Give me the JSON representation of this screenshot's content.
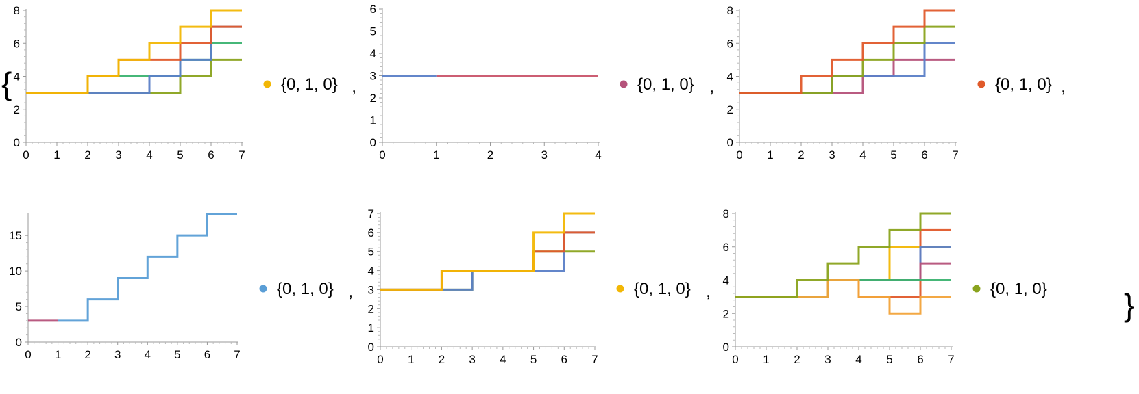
{
  "separator": ",",
  "chart_data": [
    {
      "type": "line",
      "xlim": [
        0,
        7
      ],
      "ylim": [
        0,
        8
      ],
      "xticks": [
        0,
        1,
        2,
        3,
        4,
        5,
        6,
        7
      ],
      "yticks": [
        0,
        2,
        4,
        6,
        8
      ],
      "legend_label": "{0, 1, 0}",
      "legend_color": "#f2b705",
      "series": [
        {
          "color": "#8aa31e",
          "values": [
            [
              0,
              3
            ],
            [
              1,
              3
            ],
            [
              2,
              3
            ],
            [
              3,
              3
            ],
            [
              4,
              3
            ],
            [
              5,
              4
            ],
            [
              6,
              5
            ],
            [
              7,
              5
            ]
          ]
        },
        {
          "color": "#3cb371",
          "values": [
            [
              0,
              3
            ],
            [
              1,
              3
            ],
            [
              2,
              4
            ],
            [
              3,
              4
            ],
            [
              4,
              4
            ],
            [
              5,
              5
            ],
            [
              6,
              6
            ],
            [
              7,
              6
            ]
          ]
        },
        {
          "color": "#5b7fc7",
          "values": [
            [
              0,
              3
            ],
            [
              1,
              3
            ],
            [
              2,
              3
            ],
            [
              3,
              3
            ],
            [
              4,
              4
            ],
            [
              5,
              5
            ],
            [
              6,
              7
            ],
            [
              7,
              7
            ]
          ]
        },
        {
          "color": "#e05a2b",
          "values": [
            [
              0,
              3
            ],
            [
              1,
              3
            ],
            [
              2,
              4
            ],
            [
              3,
              5
            ],
            [
              4,
              5
            ],
            [
              5,
              6
            ],
            [
              6,
              7
            ],
            [
              7,
              7
            ]
          ]
        },
        {
          "color": "#f2b705",
          "values": [
            [
              0,
              3
            ],
            [
              1,
              3
            ],
            [
              2,
              4
            ],
            [
              3,
              5
            ],
            [
              4,
              6
            ],
            [
              5,
              7
            ],
            [
              6,
              8
            ],
            [
              7,
              8
            ]
          ]
        }
      ]
    },
    {
      "type": "line",
      "xlim": [
        0,
        4
      ],
      "ylim": [
        0,
        6
      ],
      "xticks": [
        0,
        1,
        2,
        3,
        4
      ],
      "yticks": [
        0,
        1,
        2,
        3,
        4,
        5,
        6
      ],
      "legend_label": "{0, 1, 0}",
      "legend_color": "#b5527a",
      "series": [
        {
          "color": "#5b7fc7",
          "values": [
            [
              0,
              3
            ],
            [
              1,
              3
            ]
          ]
        },
        {
          "color": "#c9556b",
          "values": [
            [
              1,
              3
            ],
            [
              2,
              3
            ],
            [
              3,
              3
            ],
            [
              4,
              3
            ]
          ]
        }
      ]
    },
    {
      "type": "line",
      "xlim": [
        0,
        7
      ],
      "ylim": [
        0,
        8
      ],
      "xticks": [
        0,
        1,
        2,
        3,
        4,
        5,
        6,
        7
      ],
      "yticks": [
        0,
        2,
        4,
        6,
        8
      ],
      "legend_label": "{0, 1, 0}",
      "legend_color": "#e05a2b",
      "series": [
        {
          "color": "#b5527a",
          "values": [
            [
              0,
              3
            ],
            [
              1,
              3
            ],
            [
              2,
              3
            ],
            [
              3,
              3
            ],
            [
              4,
              4
            ],
            [
              5,
              5
            ],
            [
              6,
              5
            ],
            [
              7,
              5
            ]
          ]
        },
        {
          "color": "#5b7fc7",
          "values": [
            [
              0,
              3
            ],
            [
              1,
              3
            ],
            [
              2,
              3
            ],
            [
              3,
              4
            ],
            [
              4,
              4
            ],
            [
              5,
              4
            ],
            [
              6,
              6
            ],
            [
              7,
              6
            ]
          ]
        },
        {
          "color": "#8aa31e",
          "values": [
            [
              0,
              3
            ],
            [
              1,
              3
            ],
            [
              2,
              3
            ],
            [
              3,
              4
            ],
            [
              4,
              5
            ],
            [
              5,
              6
            ],
            [
              6,
              7
            ],
            [
              7,
              7
            ]
          ]
        },
        {
          "color": "#e05a2b",
          "values": [
            [
              0,
              3
            ],
            [
              1,
              3
            ],
            [
              2,
              4
            ],
            [
              3,
              5
            ],
            [
              4,
              6
            ],
            [
              5,
              7
            ],
            [
              6,
              8
            ],
            [
              7,
              8
            ]
          ]
        }
      ]
    },
    {
      "type": "line",
      "xlim": [
        0,
        7
      ],
      "ylim": [
        0,
        18
      ],
      "xticks": [
        0,
        1,
        2,
        3,
        4,
        5,
        6,
        7
      ],
      "yticks": [
        0,
        5,
        10,
        15
      ],
      "legend_label": "{0, 1, 0}",
      "legend_color": "#5a9ed6",
      "series": [
        {
          "color": "#b5527a",
          "values": [
            [
              0,
              3
            ],
            [
              1,
              3
            ]
          ]
        },
        {
          "color": "#5a9ed6",
          "values": [
            [
              1,
              3
            ],
            [
              2,
              6
            ],
            [
              3,
              9
            ],
            [
              4,
              12
            ],
            [
              5,
              15
            ],
            [
              6,
              18
            ],
            [
              7,
              18
            ]
          ]
        }
      ]
    },
    {
      "type": "line",
      "xlim": [
        0,
        7
      ],
      "ylim": [
        0,
        7
      ],
      "xticks": [
        0,
        1,
        2,
        3,
        4,
        5,
        6,
        7
      ],
      "yticks": [
        0,
        1,
        2,
        3,
        4,
        5,
        6,
        7
      ],
      "legend_label": "{0, 1, 0}",
      "legend_color": "#f2b705",
      "series": [
        {
          "color": "#8aa31e",
          "values": [
            [
              0,
              3
            ],
            [
              1,
              3
            ],
            [
              2,
              3
            ],
            [
              3,
              4
            ],
            [
              4,
              4
            ],
            [
              5,
              5
            ],
            [
              6,
              5
            ],
            [
              7,
              5
            ]
          ]
        },
        {
          "color": "#5b7fc7",
          "values": [
            [
              0,
              3
            ],
            [
              1,
              3
            ],
            [
              2,
              3
            ],
            [
              3,
              4
            ],
            [
              4,
              4
            ],
            [
              5,
              4
            ],
            [
              6,
              6
            ],
            [
              7,
              6
            ]
          ]
        },
        {
          "color": "#e05a2b",
          "values": [
            [
              0,
              3
            ],
            [
              1,
              3
            ],
            [
              2,
              4
            ],
            [
              3,
              4
            ],
            [
              4,
              4
            ],
            [
              5,
              5
            ],
            [
              6,
              6
            ],
            [
              7,
              6
            ]
          ]
        },
        {
          "color": "#f2b705",
          "values": [
            [
              0,
              3
            ],
            [
              1,
              3
            ],
            [
              2,
              4
            ],
            [
              3,
              4
            ],
            [
              4,
              4
            ],
            [
              5,
              6
            ],
            [
              6,
              7
            ],
            [
              7,
              7
            ]
          ]
        }
      ]
    },
    {
      "type": "line",
      "xlim": [
        0,
        7
      ],
      "ylim": [
        0,
        8
      ],
      "xticks": [
        0,
        1,
        2,
        3,
        4,
        5,
        6,
        7
      ],
      "yticks": [
        0,
        2,
        4,
        6,
        8
      ],
      "legend_label": "{0, 1, 0}",
      "legend_color": "#8aa31e",
      "series": [
        {
          "color": "#f2b705",
          "values": [
            [
              0,
              3
            ],
            [
              1,
              3
            ],
            [
              2,
              3
            ],
            [
              3,
              4
            ],
            [
              4,
              4
            ],
            [
              5,
              6
            ],
            [
              6,
              6
            ],
            [
              7,
              6
            ]
          ]
        },
        {
          "color": "#e05a2b",
          "values": [
            [
              0,
              3
            ],
            [
              1,
              3
            ],
            [
              2,
              3
            ],
            [
              3,
              4
            ],
            [
              4,
              3
            ],
            [
              5,
              3
            ],
            [
              6,
              7
            ],
            [
              7,
              7
            ]
          ]
        },
        {
          "color": "#5b7fc7",
          "values": [
            [
              0,
              3
            ],
            [
              1,
              3
            ],
            [
              2,
              3
            ],
            [
              3,
              4
            ],
            [
              4,
              4
            ],
            [
              5,
              4
            ],
            [
              6,
              6
            ],
            [
              7,
              6
            ]
          ]
        },
        {
          "color": "#b5527a",
          "values": [
            [
              0,
              3
            ],
            [
              1,
              3
            ],
            [
              2,
              3
            ],
            [
              3,
              4
            ],
            [
              4,
              4
            ],
            [
              5,
              4
            ],
            [
              6,
              5
            ],
            [
              7,
              5
            ]
          ]
        },
        {
          "color": "#3cb371",
          "values": [
            [
              0,
              3
            ],
            [
              1,
              3
            ],
            [
              2,
              3
            ],
            [
              3,
              4
            ],
            [
              4,
              4
            ],
            [
              5,
              4
            ],
            [
              6,
              4
            ],
            [
              7,
              4
            ]
          ]
        },
        {
          "color": "#f2a33a",
          "values": [
            [
              0,
              3
            ],
            [
              1,
              3
            ],
            [
              2,
              3
            ],
            [
              3,
              4
            ],
            [
              4,
              3
            ],
            [
              5,
              2
            ],
            [
              6,
              3
            ],
            [
              7,
              3
            ]
          ]
        },
        {
          "color": "#8aa31e",
          "values": [
            [
              0,
              3
            ],
            [
              1,
              3
            ],
            [
              2,
              4
            ],
            [
              3,
              5
            ],
            [
              4,
              6
            ],
            [
              5,
              7
            ],
            [
              6,
              8
            ],
            [
              7,
              8
            ]
          ]
        }
      ]
    }
  ]
}
